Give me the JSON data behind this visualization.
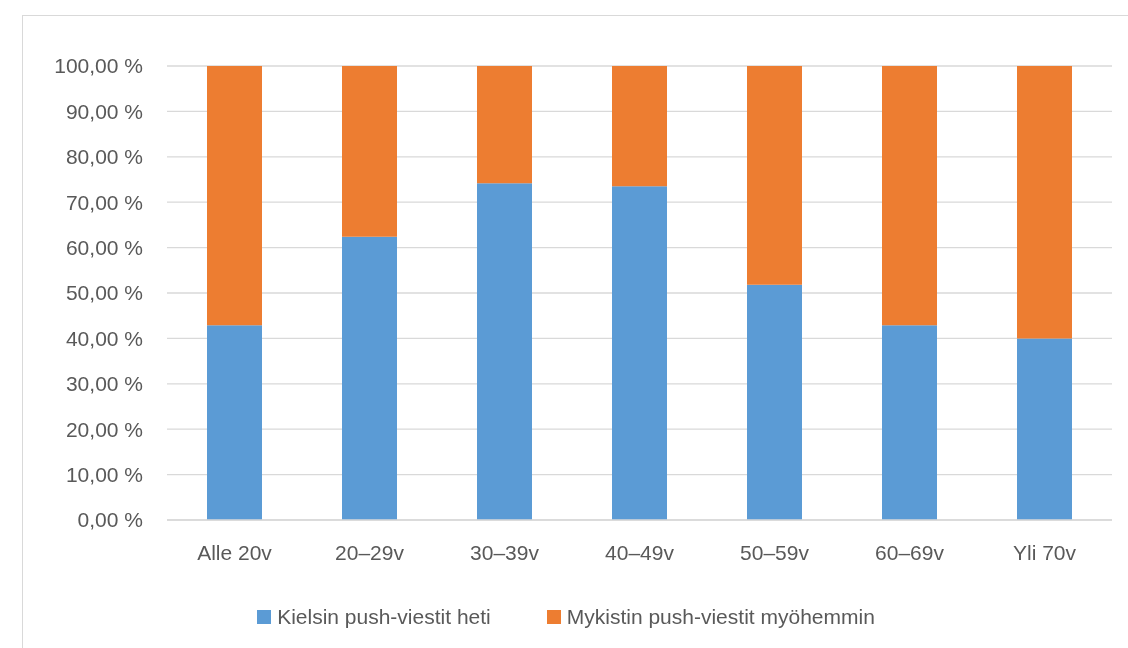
{
  "chart_data": {
    "type": "bar",
    "stacked": true,
    "categories": [
      "Alle 20v",
      "20–29v",
      "30–39v",
      "40–49v",
      "50–59v",
      "60–69v",
      "Yli 70v"
    ],
    "series": [
      {
        "name": "Kielsin push-viestit heti",
        "color": "#5b9bd5",
        "values": [
          42.9,
          62.4,
          74.2,
          73.5,
          51.8,
          42.9,
          40.0
        ]
      },
      {
        "name": "Mykistin push-viestit myöhemmin",
        "color": "#ed7d31",
        "values": [
          57.1,
          37.6,
          25.8,
          26.5,
          48.2,
          57.1,
          60.0
        ]
      }
    ],
    "ylim": [
      0,
      100
    ],
    "yticks": [
      {
        "value": 0,
        "label": "0,00 %"
      },
      {
        "value": 10,
        "label": "10,00 %"
      },
      {
        "value": 20,
        "label": "20,00 %"
      },
      {
        "value": 30,
        "label": "30,00 %"
      },
      {
        "value": 40,
        "label": "40,00 %"
      },
      {
        "value": 50,
        "label": "50,00 %"
      },
      {
        "value": 60,
        "label": "60,00 %"
      },
      {
        "value": 70,
        "label": "70,00 %"
      },
      {
        "value": 80,
        "label": "80,00 %"
      },
      {
        "value": 90,
        "label": "90,00 %"
      },
      {
        "value": 100,
        "label": "100,00 %"
      }
    ],
    "grid": "y",
    "legend": "bottom"
  }
}
